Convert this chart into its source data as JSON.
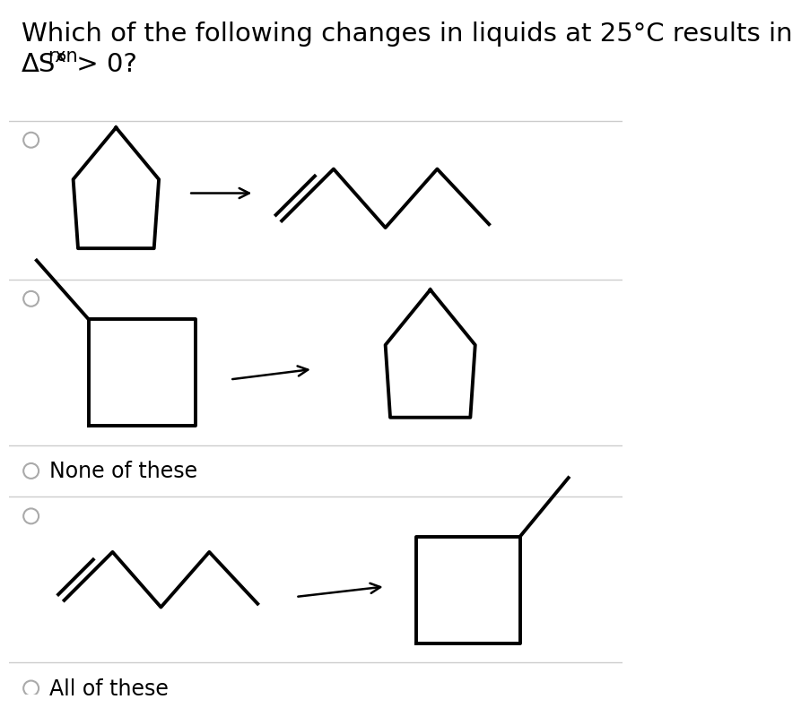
{
  "title_line1": "Which of the following changes in liquids at 25°C results in",
  "title_line2_main": "ΔS°",
  "title_line2_sub": "rxn",
  "title_line2_end": " > 0?",
  "bg_color": "#ffffff",
  "line_color": "#000000",
  "radio_color": "#555555",
  "divider_color": "#cccccc",
  "text_color": "#000000",
  "options": [
    "None of these",
    "All of these"
  ],
  "font_size_title": 21,
  "font_size_option": 17
}
